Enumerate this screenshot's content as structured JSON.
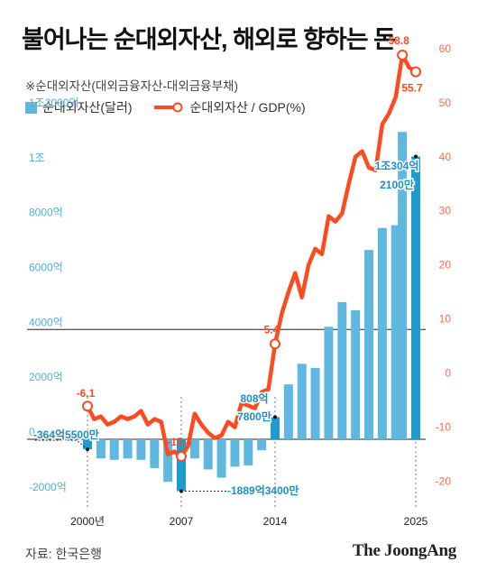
{
  "title": "불어나는 순대외자산, 해외로 향하는 돈",
  "subtitle": "※순대외자산(대외금융자산-대외금융부채)",
  "legend": {
    "bar": "순대외자산(달러)",
    "line": "순대외자산 / GDP(%)"
  },
  "source": "자료: 한국은행",
  "brand": "The JoongAng",
  "colors": {
    "bar": "#5fb8e0",
    "bar_highlight": "#1f9bd0",
    "line": "#ff4a1f",
    "left_axis": "#4db2e0",
    "right_axis": "#ff6a4a",
    "dark_label": "#1a8fc9"
  },
  "chart_data": {
    "type": "bar+line",
    "x_tick_labels": [
      "2000년",
      "2007",
      "2014",
      "2025"
    ],
    "left_axis": {
      "ylim": [
        -2400,
        14200
      ],
      "ticks": [
        -2000,
        0,
        2000,
        4000,
        6000,
        8000,
        10000,
        12000
      ],
      "tick_labels": [
        "-2000억",
        "0",
        "2000억",
        "4000억",
        "6000억",
        "8000억",
        "1조",
        "1조2000억"
      ]
    },
    "right_axis": {
      "ylim": [
        -24.4,
        59.8
      ],
      "ticks": [
        -20,
        -10,
        0,
        10,
        20,
        30,
        40,
        50,
        60
      ],
      "tick_labels": [
        "-20",
        "-10",
        "0",
        "10",
        "20",
        "30",
        "40",
        "50",
        "60"
      ]
    },
    "series": [
      {
        "name": "순대외자산(달러)",
        "kind": "bar",
        "points": [
          {
            "x": 2000.0,
            "v": -364.55
          },
          {
            "x": 2001.0,
            "v": -700
          },
          {
            "x": 2002.0,
            "v": -750
          },
          {
            "x": 2003.0,
            "v": -700
          },
          {
            "x": 2004.0,
            "v": -750
          },
          {
            "x": 2005.0,
            "v": -1050
          },
          {
            "x": 2006.0,
            "v": -1550
          },
          {
            "x": 2007.0,
            "v": -1889.34
          },
          {
            "x": 2008.0,
            "v": -700
          },
          {
            "x": 2009.0,
            "v": -1100
          },
          {
            "x": 2010.0,
            "v": -1400
          },
          {
            "x": 2011.0,
            "v": -1000
          },
          {
            "x": 2012.0,
            "v": -950
          },
          {
            "x": 2013.0,
            "v": -400
          },
          {
            "x": 2014.0,
            "v": 808.78
          },
          {
            "x": 2015.0,
            "v": 2000
          },
          {
            "x": 2016.0,
            "v": 2750
          },
          {
            "x": 2017.0,
            "v": 2600
          },
          {
            "x": 2018.0,
            "v": 4100
          },
          {
            "x": 2019.0,
            "v": 5000
          },
          {
            "x": 2020.0,
            "v": 4700
          },
          {
            "x": 2021.0,
            "v": 6900
          },
          {
            "x": 2022.0,
            "v": 7700
          },
          {
            "x": 2023.0,
            "v": 7800
          },
          {
            "x": 2023.5,
            "v": 11200
          },
          {
            "x": 2024.5,
            "v": 10304.21
          }
        ]
      },
      {
        "name": "순대외자산 / GDP(%)",
        "kind": "line",
        "points": [
          {
            "x": 2000.0,
            "v": -6.1
          },
          {
            "x": 2000.5,
            "v": -8.5
          },
          {
            "x": 2001.0,
            "v": -8.0
          },
          {
            "x": 2001.5,
            "v": -9.5
          },
          {
            "x": 2002.0,
            "v": -9.0
          },
          {
            "x": 2002.5,
            "v": -8.0
          },
          {
            "x": 2003.0,
            "v": -8.5
          },
          {
            "x": 2003.5,
            "v": -8.0
          },
          {
            "x": 2004.0,
            "v": -7.0
          },
          {
            "x": 2004.5,
            "v": -9.5
          },
          {
            "x": 2005.0,
            "v": -8.5
          },
          {
            "x": 2005.5,
            "v": -9.0
          },
          {
            "x": 2006.0,
            "v": -15.0
          },
          {
            "x": 2006.5,
            "v": -14.5
          },
          {
            "x": 2007.0,
            "v": -15.4
          },
          {
            "x": 2007.5,
            "v": -13.5
          },
          {
            "x": 2008.0,
            "v": -7.5
          },
          {
            "x": 2008.5,
            "v": -9.5
          },
          {
            "x": 2009.0,
            "v": -11.0
          },
          {
            "x": 2009.5,
            "v": -12.0
          },
          {
            "x": 2010.0,
            "v": -11.5
          },
          {
            "x": 2010.5,
            "v": -9.0
          },
          {
            "x": 2011.0,
            "v": -10.0
          },
          {
            "x": 2011.5,
            "v": -5.5
          },
          {
            "x": 2012.0,
            "v": -6.0
          },
          {
            "x": 2012.5,
            "v": -6.5
          },
          {
            "x": 2013.0,
            "v": -3.5
          },
          {
            "x": 2013.5,
            "v": -3.0
          },
          {
            "x": 2014.0,
            "v": 5.4
          },
          {
            "x": 2014.5,
            "v": 11.0
          },
          {
            "x": 2015.0,
            "v": 15.0
          },
          {
            "x": 2015.5,
            "v": 18.5
          },
          {
            "x": 2016.0,
            "v": 14.0
          },
          {
            "x": 2016.5,
            "v": 20.0
          },
          {
            "x": 2017.0,
            "v": 23.0
          },
          {
            "x": 2017.5,
            "v": 22.0
          },
          {
            "x": 2018.0,
            "v": 29.0
          },
          {
            "x": 2018.5,
            "v": 28.0
          },
          {
            "x": 2019.0,
            "v": 29.5
          },
          {
            "x": 2019.5,
            "v": 35.0
          },
          {
            "x": 2020.0,
            "v": 40.0
          },
          {
            "x": 2020.5,
            "v": 41.0
          },
          {
            "x": 2021.0,
            "v": 38.0
          },
          {
            "x": 2021.5,
            "v": 37.5
          },
          {
            "x": 2022.0,
            "v": 46.0
          },
          {
            "x": 2022.5,
            "v": 48.0
          },
          {
            "x": 2023.0,
            "v": 51.0
          },
          {
            "x": 2023.5,
            "v": 58.8
          },
          {
            "x": 2024.0,
            "v": 56.5
          },
          {
            "x": 2024.5,
            "v": 55.7
          }
        ]
      }
    ],
    "markers": [
      {
        "x": 2000.0,
        "v": -6.1
      },
      {
        "x": 2007.0,
        "v": -15.4
      },
      {
        "x": 2014.0,
        "v": 5.4
      },
      {
        "x": 2023.5,
        "v": 58.8
      },
      {
        "x": 2024.5,
        "v": 55.7
      }
    ],
    "line_labels": [
      {
        "text": "-6.1"
      },
      {
        "text": "-15.4"
      },
      {
        "text": "5.4"
      },
      {
        "text": "58.8"
      },
      {
        "text": "55.7"
      }
    ],
    "bar_labels": [
      {
        "text": "-364억5500만"
      },
      {
        "text": "-1889억3400만"
      },
      {
        "text": "808억"
      },
      {
        "text": "7800만"
      },
      {
        "text": "1조304억"
      },
      {
        "text": "2100만"
      }
    ]
  }
}
